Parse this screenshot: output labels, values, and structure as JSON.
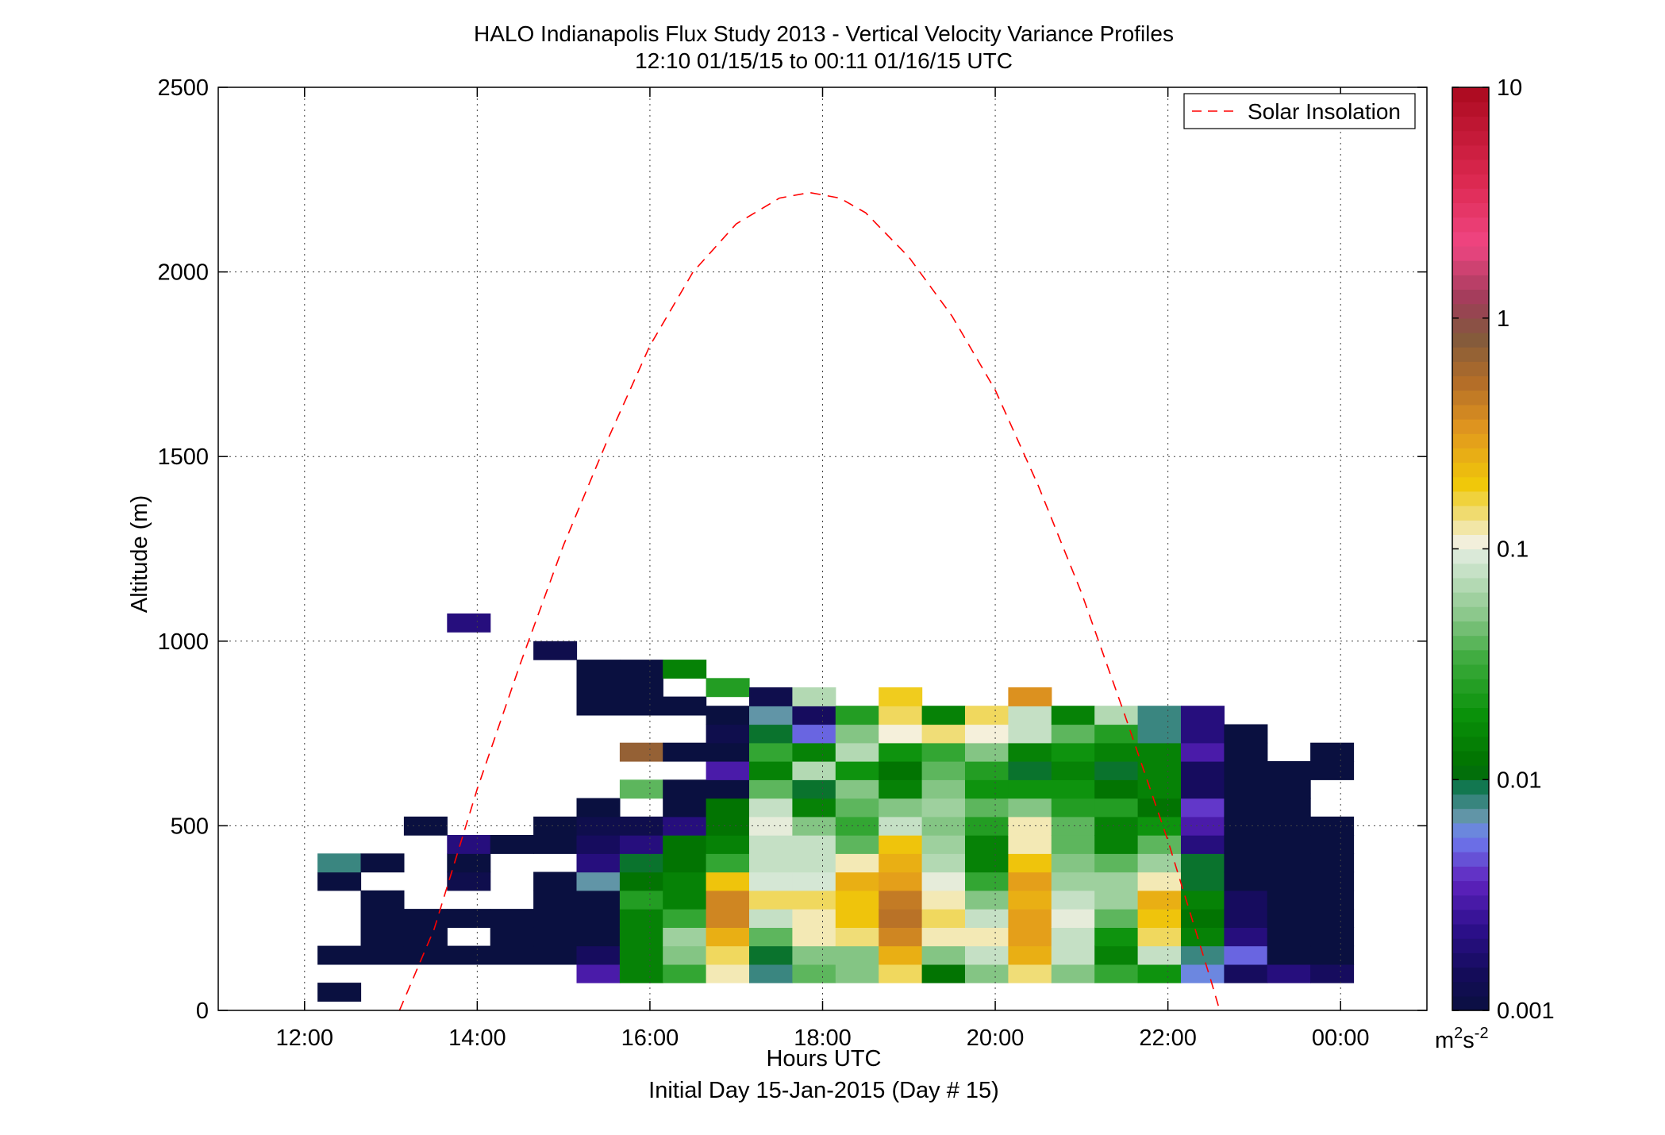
{
  "figure": {
    "title_line1": "HALO Indianapolis Flux Study 2013 - Vertical Velocity Variance Profiles",
    "title_line2": "12:10 01/15/15 to 00:11 01/16/15  UTC",
    "subtitle": "Initial Day 15-Jan-2015 (Day # 15)",
    "legend_label": "Solar Insolation",
    "colorbar_unit_base": "m",
    "colorbar_unit_sup1": "2",
    "colorbar_unit_mid": "s",
    "colorbar_unit_sup2": "-2"
  },
  "chart_data": {
    "type": "heatmap",
    "title": "HALO Indianapolis Flux Study 2013 - Vertical Velocity Variance Profiles",
    "xlabel": "Hours UTC",
    "ylabel": "Altitude (m)",
    "xlim": [
      11,
      25
    ],
    "ylim": [
      0,
      2500
    ],
    "x_ticks": [
      12,
      14,
      16,
      18,
      20,
      22,
      24
    ],
    "x_tick_labels": [
      "12:00",
      "14:00",
      "16:00",
      "18:00",
      "20:00",
      "22:00",
      "00:00"
    ],
    "y_ticks": [
      0,
      500,
      1000,
      1500,
      2000,
      2500
    ],
    "y_tick_labels": [
      "0",
      "500",
      "1000",
      "1500",
      "2000",
      "2500"
    ],
    "grid": true,
    "legend_position": "top-right",
    "cell_width_hours": 0.5,
    "cell_height_m": 50,
    "colorbar": {
      "scale": "log",
      "range": [
        0.001,
        10
      ],
      "ticks": [
        0.001,
        0.01,
        0.1,
        1,
        10
      ],
      "tick_labels": [
        "0.001",
        "0.01",
        "0.1",
        "1",
        "10"
      ]
    },
    "cells": [
      [
        12.4,
        50,
        0.001
      ],
      [
        12.4,
        150,
        0.001
      ],
      [
        12.4,
        350,
        0.001
      ],
      [
        12.4,
        400,
        0.008
      ],
      [
        12.9,
        150,
        0.001
      ],
      [
        12.9,
        200,
        0.001
      ],
      [
        12.9,
        250,
        0.001
      ],
      [
        12.9,
        300,
        0.001
      ],
      [
        12.9,
        400,
        0.001
      ],
      [
        13.4,
        150,
        0.001
      ],
      [
        13.4,
        200,
        0.001
      ],
      [
        13.4,
        250,
        0.001
      ],
      [
        13.4,
        500,
        0.001
      ],
      [
        13.9,
        150,
        0.001
      ],
      [
        13.9,
        250,
        0.001
      ],
      [
        13.9,
        350,
        0.0012
      ],
      [
        13.9,
        400,
        0.001
      ],
      [
        13.9,
        450,
        0.002
      ],
      [
        13.9,
        1050,
        0.002
      ],
      [
        14.4,
        150,
        0.001
      ],
      [
        14.4,
        200,
        0.001
      ],
      [
        14.4,
        250,
        0.001
      ],
      [
        14.4,
        450,
        0.001
      ],
      [
        14.9,
        150,
        0.001
      ],
      [
        14.9,
        200,
        0.001
      ],
      [
        14.9,
        250,
        0.001
      ],
      [
        14.9,
        300,
        0.001
      ],
      [
        14.9,
        350,
        0.001
      ],
      [
        14.9,
        450,
        0.001
      ],
      [
        14.9,
        500,
        0.001
      ],
      [
        14.9,
        975,
        0.0012
      ],
      [
        15.4,
        100,
        0.003
      ],
      [
        15.4,
        150,
        0.0015
      ],
      [
        15.4,
        200,
        0.001
      ],
      [
        15.4,
        250,
        0.001
      ],
      [
        15.4,
        300,
        0.001
      ],
      [
        15.4,
        350,
        0.007
      ],
      [
        15.4,
        400,
        0.002
      ],
      [
        15.4,
        450,
        0.0015
      ],
      [
        15.4,
        500,
        0.0012
      ],
      [
        15.4,
        550,
        0.001
      ],
      [
        15.4,
        825,
        0.001
      ],
      [
        15.4,
        875,
        0.001
      ],
      [
        15.4,
        925,
        0.001
      ],
      [
        15.9,
        100,
        0.015
      ],
      [
        15.9,
        150,
        0.015
      ],
      [
        15.9,
        200,
        0.015
      ],
      [
        15.9,
        250,
        0.015
      ],
      [
        15.9,
        300,
        0.025
      ],
      [
        15.9,
        350,
        0.012
      ],
      [
        15.9,
        400,
        0.01
      ],
      [
        15.9,
        450,
        0.002
      ],
      [
        15.9,
        500,
        0.0012
      ],
      [
        15.9,
        600,
        0.04
      ],
      [
        15.9,
        700,
        0.7
      ],
      [
        15.9,
        825,
        0.001
      ],
      [
        15.9,
        875,
        0.001
      ],
      [
        15.9,
        925,
        0.001
      ],
      [
        16.4,
        100,
        0.03
      ],
      [
        16.4,
        150,
        0.05
      ],
      [
        16.4,
        200,
        0.06
      ],
      [
        16.4,
        250,
        0.03
      ],
      [
        16.4,
        300,
        0.015
      ],
      [
        16.4,
        350,
        0.015
      ],
      [
        16.4,
        400,
        0.012
      ],
      [
        16.4,
        450,
        0.012
      ],
      [
        16.4,
        500,
        0.002
      ],
      [
        16.4,
        550,
        0.001
      ],
      [
        16.4,
        600,
        0.001
      ],
      [
        16.4,
        700,
        0.001
      ],
      [
        16.4,
        825,
        0.001
      ],
      [
        16.4,
        925,
        0.015
      ],
      [
        16.9,
        100,
        0.12
      ],
      [
        16.9,
        150,
        0.15
      ],
      [
        16.9,
        200,
        0.25
      ],
      [
        16.9,
        250,
        0.4
      ],
      [
        16.9,
        300,
        0.4
      ],
      [
        16.9,
        350,
        0.2
      ],
      [
        16.9,
        400,
        0.03
      ],
      [
        16.9,
        450,
        0.015
      ],
      [
        16.9,
        500,
        0.012
      ],
      [
        16.9,
        550,
        0.012
      ],
      [
        16.9,
        600,
        0.001
      ],
      [
        16.9,
        650,
        0.003
      ],
      [
        16.9,
        700,
        0.001
      ],
      [
        16.9,
        750,
        0.0012
      ],
      [
        16.9,
        800,
        0.001
      ],
      [
        16.9,
        875,
        0.025
      ],
      [
        17.4,
        100,
        0.008
      ],
      [
        17.4,
        150,
        0.01
      ],
      [
        17.4,
        200,
        0.04
      ],
      [
        17.4,
        250,
        0.08
      ],
      [
        17.4,
        300,
        0.15
      ],
      [
        17.4,
        350,
        0.09
      ],
      [
        17.4,
        400,
        0.08
      ],
      [
        17.4,
        450,
        0.08
      ],
      [
        17.4,
        500,
        0.1
      ],
      [
        17.4,
        550,
        0.08
      ],
      [
        17.4,
        600,
        0.04
      ],
      [
        17.4,
        650,
        0.015
      ],
      [
        17.4,
        700,
        0.03
      ],
      [
        17.4,
        750,
        0.01
      ],
      [
        17.4,
        800,
        0.007
      ],
      [
        17.4,
        850,
        0.0012
      ],
      [
        17.9,
        100,
        0.04
      ],
      [
        17.9,
        150,
        0.05
      ],
      [
        17.9,
        200,
        0.12
      ],
      [
        17.9,
        250,
        0.12
      ],
      [
        17.9,
        300,
        0.15
      ],
      [
        17.9,
        350,
        0.09
      ],
      [
        17.9,
        400,
        0.08
      ],
      [
        17.9,
        450,
        0.08
      ],
      [
        17.9,
        500,
        0.05
      ],
      [
        17.9,
        550,
        0.015
      ],
      [
        17.9,
        600,
        0.01
      ],
      [
        17.9,
        650,
        0.07
      ],
      [
        17.9,
        700,
        0.015
      ],
      [
        17.9,
        750,
        0.005
      ],
      [
        17.9,
        800,
        0.0015
      ],
      [
        17.9,
        850,
        0.07
      ],
      [
        18.4,
        100,
        0.05
      ],
      [
        18.4,
        150,
        0.05
      ],
      [
        18.4,
        200,
        0.14
      ],
      [
        18.4,
        250,
        0.2
      ],
      [
        18.4,
        300,
        0.2
      ],
      [
        18.4,
        350,
        0.25
      ],
      [
        18.4,
        400,
        0.12
      ],
      [
        18.4,
        450,
        0.04
      ],
      [
        18.4,
        500,
        0.03
      ],
      [
        18.4,
        550,
        0.04
      ],
      [
        18.4,
        600,
        0.05
      ],
      [
        18.4,
        650,
        0.02
      ],
      [
        18.4,
        700,
        0.07
      ],
      [
        18.4,
        750,
        0.05
      ],
      [
        18.4,
        800,
        0.025
      ],
      [
        18.9,
        100,
        0.15
      ],
      [
        18.9,
        150,
        0.25
      ],
      [
        18.9,
        200,
        0.4
      ],
      [
        18.9,
        250,
        0.5
      ],
      [
        18.9,
        300,
        0.45
      ],
      [
        18.9,
        350,
        0.3
      ],
      [
        18.9,
        400,
        0.25
      ],
      [
        18.9,
        450,
        0.2
      ],
      [
        18.9,
        500,
        0.08
      ],
      [
        18.9,
        550,
        0.05
      ],
      [
        18.9,
        600,
        0.015
      ],
      [
        18.9,
        650,
        0.012
      ],
      [
        18.9,
        700,
        0.02
      ],
      [
        18.9,
        750,
        0.11
      ],
      [
        18.9,
        800,
        0.15
      ],
      [
        18.9,
        850,
        0.18
      ],
      [
        19.4,
        100,
        0.012
      ],
      [
        19.4,
        150,
        0.05
      ],
      [
        19.4,
        200,
        0.12
      ],
      [
        19.4,
        250,
        0.15
      ],
      [
        19.4,
        300,
        0.12
      ],
      [
        19.4,
        350,
        0.1
      ],
      [
        19.4,
        400,
        0.07
      ],
      [
        19.4,
        450,
        0.06
      ],
      [
        19.4,
        500,
        0.05
      ],
      [
        19.4,
        550,
        0.06
      ],
      [
        19.4,
        600,
        0.05
      ],
      [
        19.4,
        650,
        0.04
      ],
      [
        19.4,
        700,
        0.03
      ],
      [
        19.4,
        750,
        0.14
      ],
      [
        19.4,
        800,
        0.015
      ],
      [
        19.9,
        100,
        0.05
      ],
      [
        19.9,
        150,
        0.08
      ],
      [
        19.9,
        200,
        0.12
      ],
      [
        19.9,
        250,
        0.08
      ],
      [
        19.9,
        300,
        0.05
      ],
      [
        19.9,
        350,
        0.03
      ],
      [
        19.9,
        400,
        0.015
      ],
      [
        19.9,
        450,
        0.015
      ],
      [
        19.9,
        500,
        0.025
      ],
      [
        19.9,
        550,
        0.04
      ],
      [
        19.9,
        600,
        0.02
      ],
      [
        19.9,
        650,
        0.025
      ],
      [
        19.9,
        700,
        0.05
      ],
      [
        19.9,
        750,
        0.11
      ],
      [
        19.9,
        800,
        0.15
      ],
      [
        20.4,
        100,
        0.14
      ],
      [
        20.4,
        150,
        0.25
      ],
      [
        20.4,
        200,
        0.3
      ],
      [
        20.4,
        250,
        0.3
      ],
      [
        20.4,
        300,
        0.25
      ],
      [
        20.4,
        350,
        0.3
      ],
      [
        20.4,
        400,
        0.2
      ],
      [
        20.4,
        450,
        0.12
      ],
      [
        20.4,
        500,
        0.12
      ],
      [
        20.4,
        550,
        0.05
      ],
      [
        20.4,
        600,
        0.02
      ],
      [
        20.4,
        650,
        0.01
      ],
      [
        20.4,
        700,
        0.015
      ],
      [
        20.4,
        750,
        0.08
      ],
      [
        20.4,
        800,
        0.08
      ],
      [
        20.4,
        850,
        0.35
      ],
      [
        20.9,
        100,
        0.05
      ],
      [
        20.9,
        150,
        0.08
      ],
      [
        20.9,
        200,
        0.08
      ],
      [
        20.9,
        250,
        0.1
      ],
      [
        20.9,
        300,
        0.08
      ],
      [
        20.9,
        350,
        0.06
      ],
      [
        20.9,
        400,
        0.05
      ],
      [
        20.9,
        450,
        0.04
      ],
      [
        20.9,
        500,
        0.04
      ],
      [
        20.9,
        550,
        0.025
      ],
      [
        20.9,
        600,
        0.02
      ],
      [
        20.9,
        650,
        0.015
      ],
      [
        20.9,
        700,
        0.02
      ],
      [
        20.9,
        750,
        0.04
      ],
      [
        20.9,
        800,
        0.015
      ],
      [
        21.4,
        100,
        0.03
      ],
      [
        21.4,
        150,
        0.015
      ],
      [
        21.4,
        200,
        0.02
      ],
      [
        21.4,
        250,
        0.04
      ],
      [
        21.4,
        300,
        0.06
      ],
      [
        21.4,
        350,
        0.06
      ],
      [
        21.4,
        400,
        0.04
      ],
      [
        21.4,
        450,
        0.015
      ],
      [
        21.4,
        500,
        0.015
      ],
      [
        21.4,
        550,
        0.025
      ],
      [
        21.4,
        600,
        0.012
      ],
      [
        21.4,
        650,
        0.01
      ],
      [
        21.4,
        700,
        0.015
      ],
      [
        21.4,
        750,
        0.025
      ],
      [
        21.4,
        800,
        0.07
      ],
      [
        21.9,
        100,
        0.02
      ],
      [
        21.9,
        150,
        0.08
      ],
      [
        21.9,
        200,
        0.15
      ],
      [
        21.9,
        250,
        0.2
      ],
      [
        21.9,
        300,
        0.25
      ],
      [
        21.9,
        350,
        0.12
      ],
      [
        21.9,
        400,
        0.06
      ],
      [
        21.9,
        450,
        0.04
      ],
      [
        21.9,
        500,
        0.02
      ],
      [
        21.9,
        550,
        0.012
      ],
      [
        21.9,
        600,
        0.015
      ],
      [
        21.9,
        650,
        0.015
      ],
      [
        21.9,
        700,
        0.015
      ],
      [
        21.9,
        750,
        0.008
      ],
      [
        21.9,
        800,
        0.008
      ],
      [
        22.4,
        100,
        0.006
      ],
      [
        22.4,
        150,
        0.008
      ],
      [
        22.4,
        200,
        0.015
      ],
      [
        22.4,
        250,
        0.012
      ],
      [
        22.4,
        300,
        0.015
      ],
      [
        22.4,
        350,
        0.01
      ],
      [
        22.4,
        400,
        0.01
      ],
      [
        22.4,
        450,
        0.002
      ],
      [
        22.4,
        500,
        0.003
      ],
      [
        22.4,
        550,
        0.004
      ],
      [
        22.4,
        600,
        0.0015
      ],
      [
        22.4,
        650,
        0.0015
      ],
      [
        22.4,
        700,
        0.003
      ],
      [
        22.4,
        750,
        0.002
      ],
      [
        22.4,
        800,
        0.002
      ],
      [
        22.9,
        100,
        0.0015
      ],
      [
        22.9,
        150,
        0.005
      ],
      [
        22.9,
        200,
        0.002
      ],
      [
        22.9,
        250,
        0.0015
      ],
      [
        22.9,
        300,
        0.0015
      ],
      [
        22.9,
        350,
        0.001
      ],
      [
        22.9,
        400,
        0.001
      ],
      [
        22.9,
        450,
        0.001
      ],
      [
        22.9,
        500,
        0.001
      ],
      [
        22.9,
        550,
        0.001
      ],
      [
        22.9,
        600,
        0.001
      ],
      [
        22.9,
        650,
        0.001
      ],
      [
        22.9,
        700,
        0.001
      ],
      [
        22.9,
        750,
        0.001
      ],
      [
        23.4,
        100,
        0.002
      ],
      [
        23.4,
        150,
        0.001
      ],
      [
        23.4,
        200,
        0.001
      ],
      [
        23.4,
        250,
        0.001
      ],
      [
        23.4,
        300,
        0.001
      ],
      [
        23.4,
        350,
        0.001
      ],
      [
        23.4,
        400,
        0.001
      ],
      [
        23.4,
        450,
        0.001
      ],
      [
        23.4,
        500,
        0.001
      ],
      [
        23.4,
        550,
        0.001
      ],
      [
        23.4,
        600,
        0.001
      ],
      [
        23.4,
        650,
        0.001
      ],
      [
        23.9,
        100,
        0.0015
      ],
      [
        23.9,
        150,
        0.001
      ],
      [
        23.9,
        200,
        0.001
      ],
      [
        23.9,
        250,
        0.001
      ],
      [
        23.9,
        300,
        0.001
      ],
      [
        23.9,
        350,
        0.001
      ],
      [
        23.9,
        400,
        0.001
      ],
      [
        23.9,
        450,
        0.001
      ],
      [
        23.9,
        500,
        0.001
      ],
      [
        23.9,
        650,
        0.001
      ],
      [
        23.9,
        700,
        0.001
      ]
    ],
    "series": [
      {
        "name": "Solar Insolation",
        "style": "dashed",
        "color": "#ff0000",
        "x": [
          13.1,
          13.5,
          14.0,
          14.5,
          15.0,
          15.5,
          16.0,
          16.5,
          17.0,
          17.5,
          17.85,
          18.2,
          18.5,
          19.0,
          19.5,
          20.0,
          20.5,
          21.0,
          21.5,
          22.0,
          22.5,
          22.6
        ],
        "y": [
          0,
          220,
          600,
          940,
          1260,
          1540,
          1800,
          2000,
          2130,
          2200,
          2215,
          2200,
          2160,
          2040,
          1880,
          1680,
          1420,
          1130,
          800,
          460,
          80,
          0
        ]
      }
    ]
  }
}
